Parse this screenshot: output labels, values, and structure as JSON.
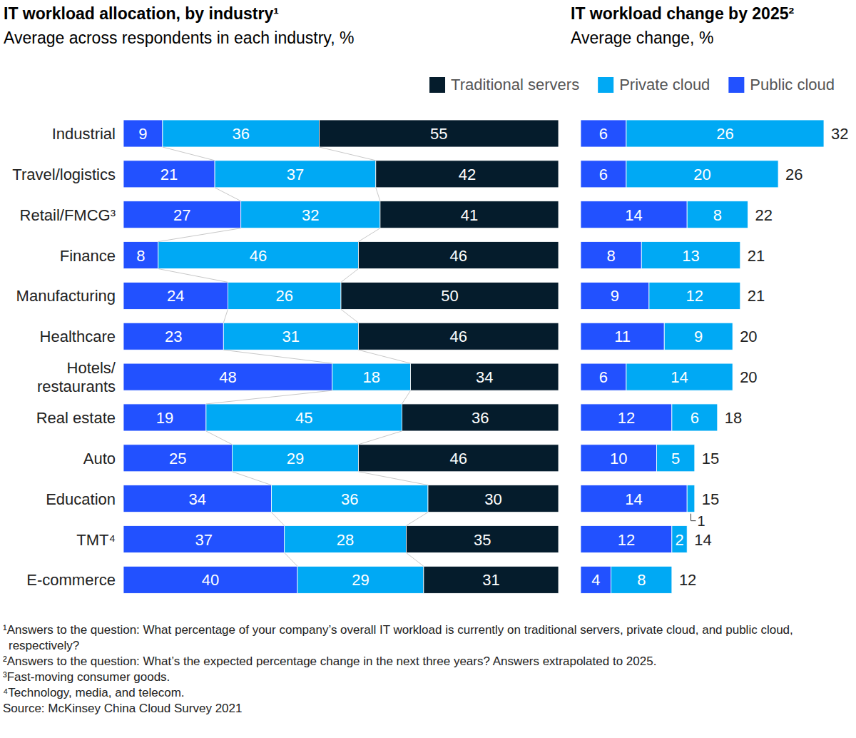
{
  "chart_data": [
    {
      "type": "bar",
      "orientation": "horizontal",
      "stacked": true,
      "data_labels": true,
      "tick_labels": false,
      "title": "IT workload allocation, by industry¹",
      "subtitle": "Average across respondents in each industry, %",
      "categories": [
        "Industrial",
        "Travel/logistics",
        "Retail/FMCG³",
        "Finance",
        "Manufacturing",
        "Healthcare",
        "Hotels/\nrestaurants",
        "Real estate",
        "Auto",
        "Education",
        "TMT⁴",
        "E-commerce"
      ],
      "xlim": [
        0,
        100
      ],
      "series": [
        {
          "name": "Public cloud",
          "color": "#2251ff",
          "values": [
            9,
            21,
            27,
            8,
            24,
            23,
            48,
            19,
            25,
            34,
            37,
            40
          ]
        },
        {
          "name": "Private cloud",
          "color": "#00a9f4",
          "values": [
            36,
            37,
            32,
            46,
            26,
            31,
            18,
            45,
            29,
            36,
            28,
            29
          ]
        },
        {
          "name": "Traditional servers",
          "color": "#051c2c",
          "values": [
            55,
            42,
            41,
            46,
            50,
            46,
            34,
            36,
            46,
            30,
            35,
            31
          ]
        }
      ],
      "legend": "top-right",
      "notes": [
        "¹Answers to the question: What percentage of your company’s overall IT workload is currently on traditional servers, private cloud, and public cloud, respectively?",
        "²Answers to the question: What’s the expected percentage change in the next three years? Answers extrapolated to 2025.",
        "³Fast-moving consumer goods.",
        "⁴Technology, media, and telecom.",
        "Source: McKinsey China Cloud Survey 2021"
      ]
    },
    {
      "type": "bar",
      "orientation": "horizontal",
      "stacked": true,
      "data_labels": true,
      "tick_labels": false,
      "title": "IT workload change by 2025²",
      "subtitle": "Average change, %",
      "xlim": [
        0,
        32
      ],
      "series": [
        {
          "color": "#2251ff",
          "values": [
            6,
            6,
            14,
            8,
            9,
            11,
            6,
            12,
            10,
            14,
            12,
            4
          ]
        },
        {
          "color": "#00a9f4",
          "values": [
            26,
            20,
            8,
            13,
            12,
            9,
            14,
            6,
            5,
            1,
            2,
            8
          ]
        }
      ],
      "totals": [
        32,
        26,
        22,
        21,
        21,
        20,
        20,
        18,
        15,
        15,
        14,
        12
      ]
    }
  ]
}
